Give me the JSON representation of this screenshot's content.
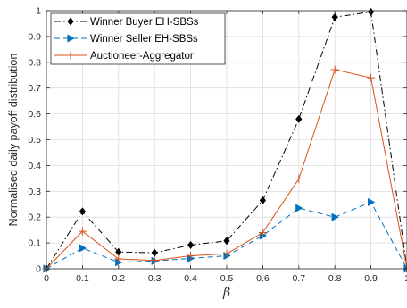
{
  "chart_data": {
    "type": "line",
    "title": "",
    "xlabel": "β",
    "ylabel": "Normalised daily payoff distribution",
    "xlim": [
      0,
      1
    ],
    "ylim": [
      0,
      1
    ],
    "grid": true,
    "legend_position": "top-left",
    "x": [
      0,
      0.1,
      0.2,
      0.3,
      0.4,
      0.5,
      0.6,
      0.7,
      0.8,
      0.9,
      1.0
    ],
    "xticks": [
      "0",
      "0.1",
      "0.2",
      "0.3",
      "0.4",
      "0.5",
      "0.6",
      "0.7",
      "0.8",
      "0.9",
      "1"
    ],
    "yticks": [
      "0",
      "0.1",
      "0.2",
      "0.3",
      "0.4",
      "0.5",
      "0.6",
      "0.7",
      "0.8",
      "0.9",
      "1"
    ],
    "series": [
      {
        "name": "Winner Buyer EH-SBSs",
        "color": "#000000",
        "dash": "dash-dot",
        "marker": "diamond",
        "values": [
          0,
          0.222,
          0.065,
          0.062,
          0.092,
          0.108,
          0.265,
          0.58,
          0.975,
          0.995,
          0
        ]
      },
      {
        "name": "Winner Seller EH-SBSs",
        "color": "#0072BD",
        "dash": "dashed",
        "marker": "triangle-right",
        "values": [
          0,
          0.08,
          0.025,
          0.03,
          0.04,
          0.05,
          0.128,
          0.235,
          0.2,
          0.258,
          0
        ]
      },
      {
        "name": "Auctioneer-Aggregator",
        "color": "#D95319",
        "dash": "solid",
        "marker": "plus",
        "values": [
          0,
          0.145,
          0.038,
          0.032,
          0.05,
          0.058,
          0.14,
          0.348,
          0.772,
          0.74,
          0
        ]
      }
    ]
  }
}
